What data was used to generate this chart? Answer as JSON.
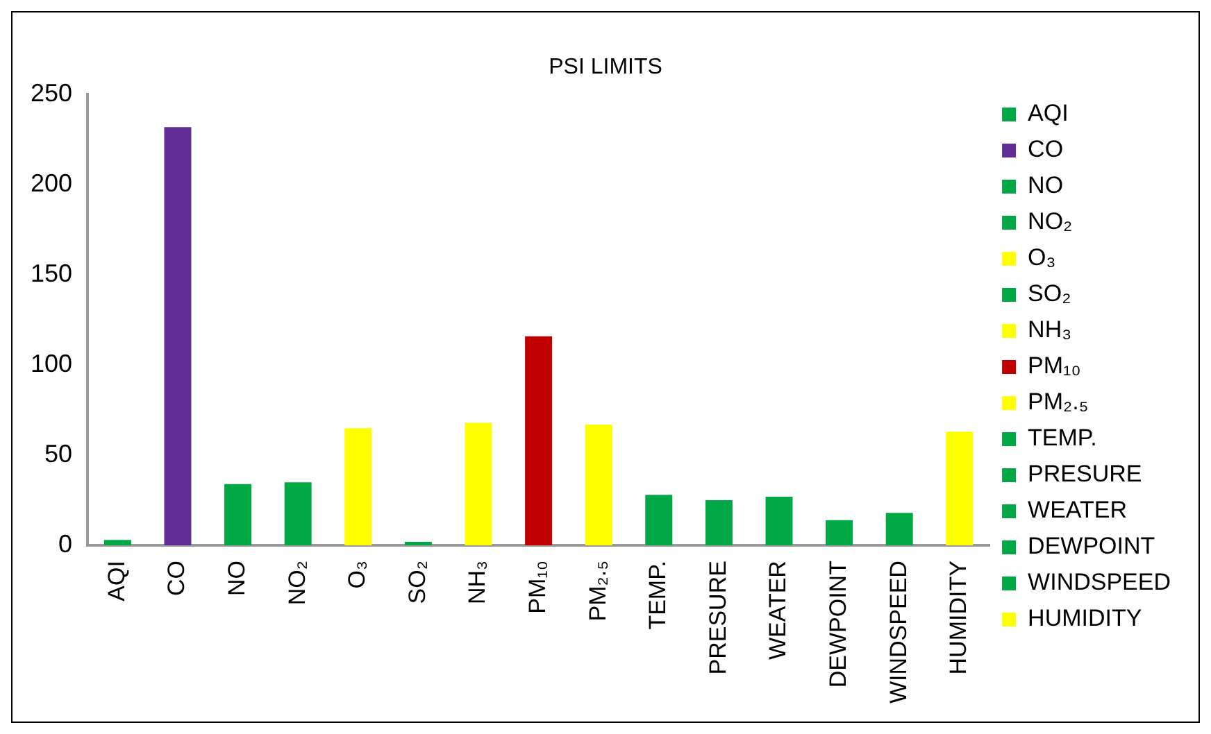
{
  "chart_data": {
    "type": "bar",
    "title": "PSI LIMITS",
    "categories": [
      "AQI",
      "CO",
      "NO",
      "NO₂",
      "O₃",
      "SO₂",
      "NH₃",
      "PM₁₀",
      "PM₂.₅",
      "TEMP.",
      "PRESURE",
      "WEATER",
      "DEWPOINT",
      "WINDSPEED",
      "HUMIDITY"
    ],
    "series": [
      {
        "name": "AQI",
        "color": "#00a846",
        "values": [
          3,
          null,
          null,
          null,
          null,
          null,
          null,
          null,
          null,
          null,
          null,
          null,
          null,
          null,
          null
        ]
      },
      {
        "name": "CO",
        "color": "#612c93",
        "values": [
          null,
          232,
          null,
          null,
          null,
          null,
          null,
          null,
          null,
          null,
          null,
          null,
          null,
          null,
          null
        ]
      },
      {
        "name": "NO",
        "color": "#00a846",
        "values": [
          null,
          null,
          34,
          null,
          null,
          null,
          null,
          null,
          null,
          null,
          null,
          null,
          null,
          null,
          null
        ]
      },
      {
        "name": "NO₂",
        "color": "#00a846",
        "values": [
          null,
          null,
          null,
          35,
          null,
          null,
          null,
          null,
          null,
          null,
          null,
          null,
          null,
          null,
          null
        ]
      },
      {
        "name": "O₃",
        "color": "#ffff00",
        "values": [
          null,
          null,
          null,
          null,
          65,
          null,
          null,
          null,
          null,
          null,
          null,
          null,
          null,
          null,
          null
        ]
      },
      {
        "name": "SO₂",
        "color": "#00a846",
        "values": [
          null,
          null,
          null,
          null,
          null,
          2,
          null,
          null,
          null,
          null,
          null,
          null,
          null,
          null,
          null
        ]
      },
      {
        "name": "NH₃",
        "color": "#ffff00",
        "values": [
          null,
          null,
          null,
          null,
          null,
          null,
          68,
          null,
          null,
          null,
          null,
          null,
          null,
          null,
          null
        ]
      },
      {
        "name": "PM₁₀",
        "color": "#c00000",
        "values": [
          null,
          null,
          null,
          null,
          null,
          null,
          null,
          116,
          null,
          null,
          null,
          null,
          null,
          null,
          null
        ]
      },
      {
        "name": "PM₂.₅",
        "color": "#ffff00",
        "values": [
          null,
          null,
          null,
          null,
          null,
          null,
          null,
          null,
          67,
          null,
          null,
          null,
          null,
          null,
          null
        ]
      },
      {
        "name": "TEMP.",
        "color": "#00a846",
        "values": [
          null,
          null,
          null,
          null,
          null,
          null,
          null,
          null,
          null,
          28,
          null,
          null,
          null,
          null,
          null
        ]
      },
      {
        "name": "PRESURE",
        "color": "#00a846",
        "values": [
          null,
          null,
          null,
          null,
          null,
          null,
          null,
          null,
          null,
          null,
          25,
          null,
          null,
          null,
          null
        ]
      },
      {
        "name": "WEATER",
        "color": "#00a846",
        "values": [
          null,
          null,
          null,
          null,
          null,
          null,
          null,
          null,
          null,
          null,
          null,
          27,
          null,
          null,
          null
        ]
      },
      {
        "name": "DEWPOINT",
        "color": "#00a846",
        "values": [
          null,
          null,
          null,
          null,
          null,
          null,
          null,
          null,
          null,
          null,
          null,
          null,
          14,
          null,
          null
        ]
      },
      {
        "name": "WINDSPEED",
        "color": "#00a846",
        "values": [
          null,
          null,
          null,
          null,
          null,
          null,
          null,
          null,
          null,
          null,
          null,
          null,
          null,
          18,
          null
        ]
      },
      {
        "name": "HUMIDITY",
        "color": "#ffff00",
        "values": [
          null,
          null,
          null,
          null,
          null,
          null,
          null,
          null,
          null,
          null,
          null,
          null,
          null,
          null,
          63
        ]
      }
    ],
    "ylim": [
      0,
      250
    ],
    "yticks": [
      0,
      50,
      100,
      150,
      200,
      250
    ],
    "grid": false,
    "legend": "right"
  }
}
